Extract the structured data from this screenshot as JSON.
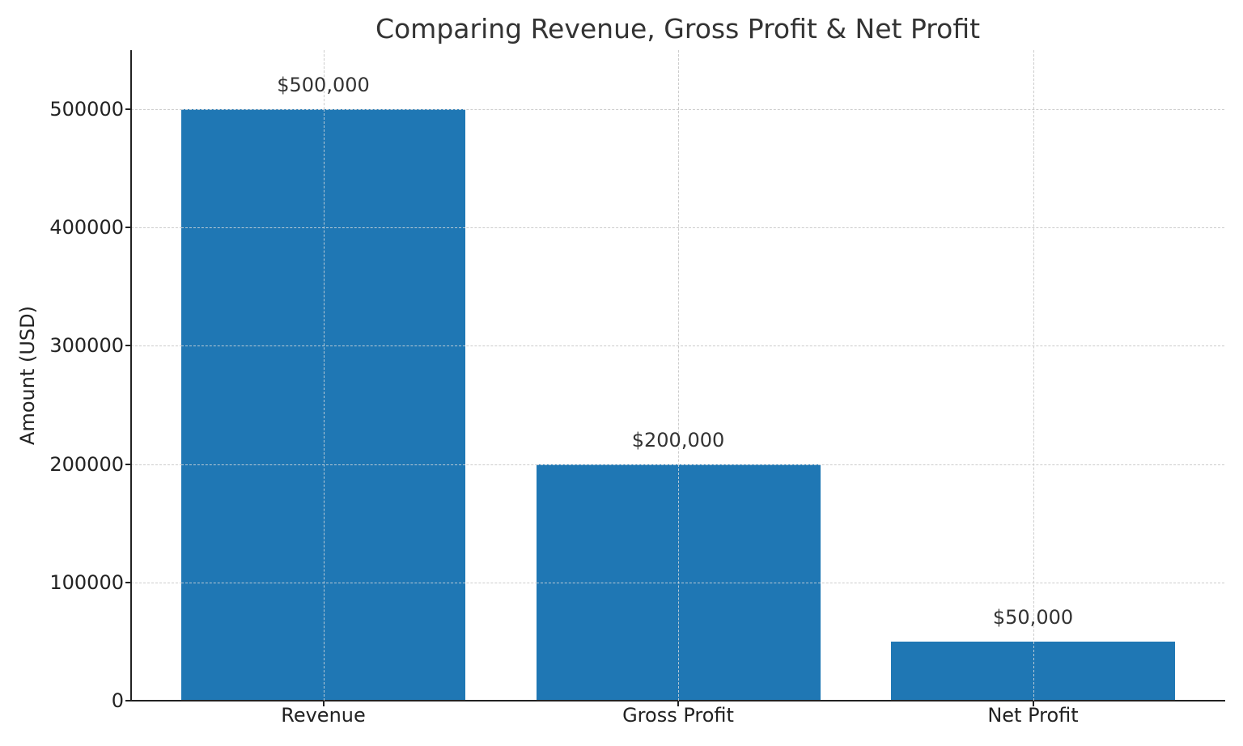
{
  "chart_data": {
    "type": "bar",
    "title": "Comparing Revenue, Gross Profit & Net Profit",
    "xlabel": "",
    "ylabel": "Amount (USD)",
    "categories": [
      "Revenue",
      "Gross Profit",
      "Net Profit"
    ],
    "values": [
      500000,
      200000,
      50000
    ],
    "data_labels": [
      "$500,000",
      "$200,000",
      "$50,000"
    ],
    "ylim": [
      0,
      550000
    ],
    "yticks": [
      0,
      100000,
      200000,
      300000,
      400000,
      500000
    ],
    "ytick_labels": [
      "0",
      "100000",
      "200000",
      "300000",
      "400000",
      "500000"
    ],
    "grid": true,
    "bar_color": "#1f77b4",
    "legend": null
  }
}
